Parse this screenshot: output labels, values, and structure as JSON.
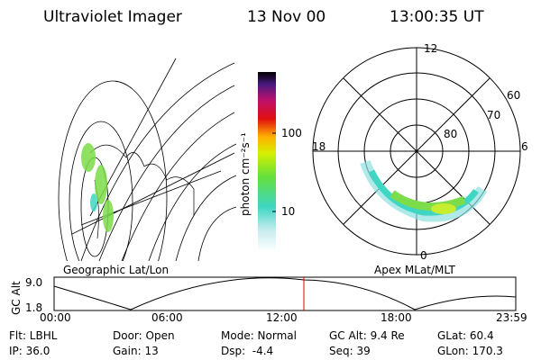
{
  "header": {
    "instrument": "Ultraviolet Imager",
    "date": "13 Nov 00",
    "time": "13:00:35 UT"
  },
  "colorbar": {
    "label": "photon cm⁻²s⁻¹",
    "ticks": [
      "100",
      "10"
    ]
  },
  "geo_map": {
    "label": "Geographic Lat/Lon"
  },
  "polar": {
    "label": "Apex MLat/MLT",
    "mlt": [
      "12",
      "18",
      "6",
      "0"
    ],
    "mlat": [
      "60",
      "70",
      "80"
    ]
  },
  "altitude": {
    "axis_label": "GC Alt",
    "yticks": [
      "9.0",
      "1.8"
    ],
    "xticks": [
      "00:00",
      "06:00",
      "12:00",
      "18:00",
      "23:59"
    ]
  },
  "footer": {
    "rows": [
      [
        "Flt: LBHL",
        "Door: Open",
        "Mode: Normal",
        "GC Alt: 9.4 Re",
        "GLat: 60.4"
      ],
      [
        "IP: 36.0",
        "Gain: 13",
        "Dsp:  -4.4",
        "Seq: 39",
        "GLon: 170.3"
      ]
    ]
  }
}
